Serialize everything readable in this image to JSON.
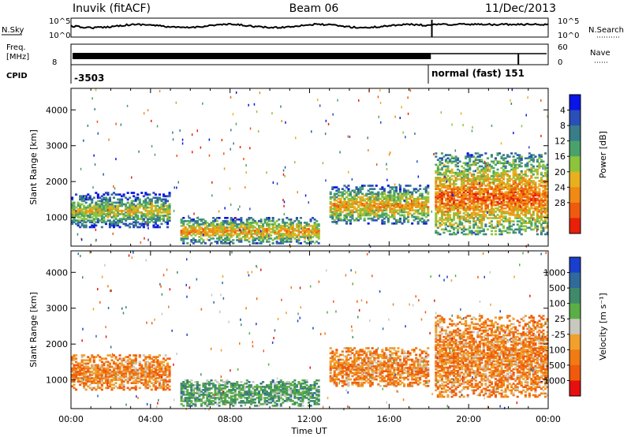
{
  "header": {
    "station": "Inuvik (fitACF)",
    "beam": "Beam 06",
    "date": "11/Dec/2013"
  },
  "noise_panel": {
    "left_label": "N.Sky",
    "right_label": "N.Search",
    "left_ticks": [
      "10^5",
      "10^0"
    ],
    "right_ticks": [
      "10^5",
      "10^0"
    ]
  },
  "freq_panel": {
    "left_label_1": "Freq.",
    "left_label_2": "[MHz]",
    "right_label": "Nave",
    "left_ticks": [
      "8"
    ],
    "right_ticks": [
      "60",
      "0"
    ]
  },
  "cpid_panel": {
    "label": "CPID",
    "entries": [
      "-3503",
      "normal (fast) 151"
    ]
  },
  "chart_data": [
    {
      "type": "heatmap",
      "title": "",
      "xlabel": "Time UT",
      "ylabel": "Slant Range [km]",
      "x_ticks": [
        "00:00",
        "04:00",
        "08:00",
        "12:00",
        "16:00",
        "20:00",
        "00:00"
      ],
      "x_range_hours": [
        0,
        24
      ],
      "y_ticks": [
        1000,
        2000,
        3000,
        4000
      ],
      "ylim": [
        200,
        4600
      ],
      "colorbar": {
        "label": "Power [dB]",
        "ticks": [
          "4",
          "8",
          "12",
          "16",
          "20",
          "24",
          "28"
        ],
        "colors": [
          "#0a14e6",
          "#2a4fb8",
          "#3a7d8a",
          "#4aa26a",
          "#8cc43c",
          "#e6b01e",
          "#f08a14",
          "#ee5a0e",
          "#e8200a"
        ]
      },
      "approx_regions": [
        {
          "t_start": 0.0,
          "t_end": 5.0,
          "range_km": [
            700,
            1700
          ],
          "power_db": 18
        },
        {
          "t_start": 5.5,
          "t_end": 12.5,
          "range_km": [
            250,
            1000
          ],
          "power_db": 22
        },
        {
          "t_start": 13.0,
          "t_end": 18.0,
          "range_km": [
            800,
            1900
          ],
          "power_db": 22
        },
        {
          "t_start": 18.3,
          "t_end": 24.0,
          "range_km": [
            500,
            2800
          ],
          "power_db": 26
        }
      ]
    },
    {
      "type": "heatmap",
      "title": "",
      "xlabel": "Time UT",
      "ylabel": "Slant Range [km]",
      "x_ticks": [
        "00:00",
        "04:00",
        "08:00",
        "12:00",
        "16:00",
        "20:00",
        "00:00"
      ],
      "x_range_hours": [
        0,
        24
      ],
      "y_ticks": [
        1000,
        2000,
        3000,
        4000
      ],
      "ylim": [
        200,
        4600
      ],
      "colorbar": {
        "label": "Velocity [m s⁻¹]",
        "ticks": [
          "1000",
          "500",
          "100",
          "25",
          "-25",
          "-100",
          "-500",
          "-1000"
        ],
        "colors": [
          "#1a3fcc",
          "#2f6a9a",
          "#3f8a6a",
          "#5aae46",
          "#c8c8c0",
          "#f0a02c",
          "#f07a14",
          "#f05a0c",
          "#e61010"
        ]
      },
      "approx_regions": [
        {
          "t_start": 0.0,
          "t_end": 5.0,
          "range_km": [
            700,
            1700
          ],
          "velocity": -100
        },
        {
          "t_start": 5.5,
          "t_end": 12.5,
          "range_km": [
            250,
            1000
          ],
          "velocity": 100
        },
        {
          "t_start": 13.0,
          "t_end": 18.0,
          "range_km": [
            800,
            1900
          ],
          "velocity": -500
        },
        {
          "t_start": 18.3,
          "t_end": 24.0,
          "range_km": [
            500,
            2800
          ],
          "velocity": -500
        }
      ]
    }
  ]
}
